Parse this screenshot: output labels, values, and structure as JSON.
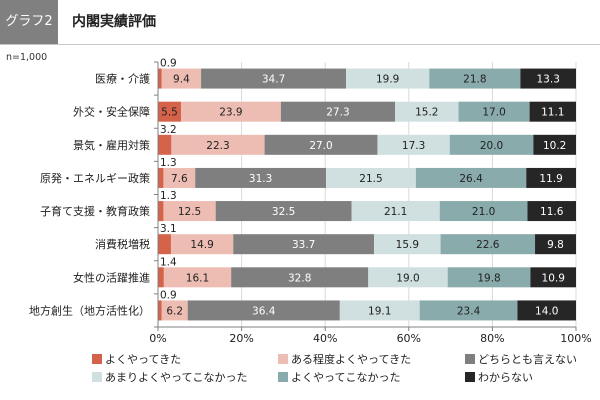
{
  "header": {
    "badge": "グラフ2",
    "title": "内閣実績評価"
  },
  "sample_note": "n=1,000",
  "chart_data": {
    "type": "bar",
    "orientation": "horizontal",
    "stacked": "percent",
    "title": "内閣実績評価",
    "xlabel": "",
    "ylabel": "",
    "xlim": [
      0,
      100
    ],
    "x_ticks": [
      "0%",
      "20%",
      "40%",
      "60%",
      "80%",
      "100%"
    ],
    "grid": true,
    "legend_position": "bottom",
    "categories": [
      "医療・介護",
      "外交・安全保障",
      "景気・雇用対策",
      "原発・エネルギー政策",
      "子育て支援・教育政策",
      "消費税増税",
      "女性の活躍推進",
      "地方創生（地方活性化）"
    ],
    "series": [
      {
        "name": "よくやってきた",
        "color": "#d4634a",
        "label_color": "#222222",
        "values": [
          0.9,
          5.5,
          3.2,
          1.3,
          1.3,
          3.1,
          1.4,
          0.9
        ],
        "label_outside": [
          true,
          false,
          true,
          true,
          true,
          true,
          true,
          true
        ]
      },
      {
        "name": "ある程度よくやってきた",
        "color": "#edbdb3",
        "label_color": "#222222",
        "values": [
          9.4,
          23.9,
          22.3,
          7.6,
          12.5,
          14.9,
          16.1,
          6.2
        ]
      },
      {
        "name": "どちらとも言えない",
        "color": "#7f7f7f",
        "label_color": "#ffffff",
        "values": [
          34.7,
          27.3,
          27.0,
          31.3,
          32.5,
          33.7,
          32.8,
          36.4
        ]
      },
      {
        "name": "あまりよくやってこなかった",
        "color": "#d0dfe0",
        "label_color": "#222222",
        "values": [
          19.9,
          15.2,
          17.3,
          21.5,
          21.1,
          15.9,
          19.0,
          19.1
        ]
      },
      {
        "name": "よくやってこなかった",
        "color": "#8aabab",
        "label_color": "#222222",
        "values": [
          21.8,
          17.0,
          20.0,
          26.4,
          21.0,
          22.6,
          19.8,
          23.4
        ]
      },
      {
        "name": "わからない",
        "color": "#262626",
        "label_color": "#ffffff",
        "values": [
          13.3,
          11.1,
          10.2,
          11.9,
          11.6,
          9.8,
          10.9,
          14.0
        ]
      }
    ]
  }
}
